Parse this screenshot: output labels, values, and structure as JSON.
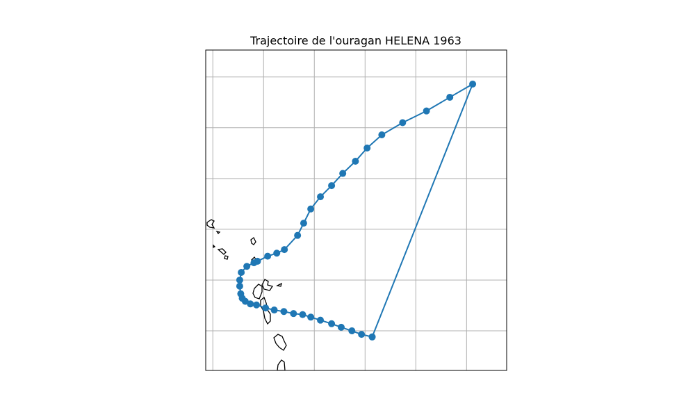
{
  "chart_data": {
    "type": "line",
    "title": "Trajectoire de l'ouragan HELENA 1963",
    "x": [
      -58.86,
      -59.07,
      -59.26,
      -59.47,
      -59.66,
      -59.88,
      -60.07,
      -60.23,
      -60.41,
      -60.6,
      -60.79,
      -60.96,
      -61.14,
      -61.26,
      -61.36,
      -61.42,
      -61.45,
      -61.47,
      -61.47,
      -61.44,
      -61.33,
      -61.19,
      -61.12,
      -60.92,
      -60.74,
      -60.59,
      -60.33,
      -60.21,
      -60.07,
      -59.88,
      -59.66,
      -59.44,
      -59.19,
      -58.96,
      -58.67,
      -58.26,
      -57.79,
      -57.33,
      -56.88,
      -58.86
    ],
    "series": [
      {
        "color": "#1f77b4",
        "values": [
          14.88,
          14.93,
          15.0,
          15.07,
          15.14,
          15.21,
          15.27,
          15.32,
          15.34,
          15.38,
          15.41,
          15.45,
          15.51,
          15.53,
          15.58,
          15.64,
          15.73,
          15.88,
          16.0,
          16.15,
          16.27,
          16.34,
          16.37,
          16.47,
          16.53,
          16.6,
          16.88,
          17.12,
          17.4,
          17.64,
          17.86,
          18.1,
          18.34,
          18.6,
          18.86,
          19.1,
          19.33,
          19.6,
          19.86,
          14.88
        ]
      }
    ],
    "xlim": [
      -62.14,
      -56.21
    ],
    "ylim": [
      14.22,
      20.53
    ],
    "xticks": [
      -62,
      -61,
      -60,
      -59,
      -58,
      -57
    ],
    "yticks": [
      15,
      16,
      17,
      18,
      19,
      20
    ],
    "grid": true
  }
}
